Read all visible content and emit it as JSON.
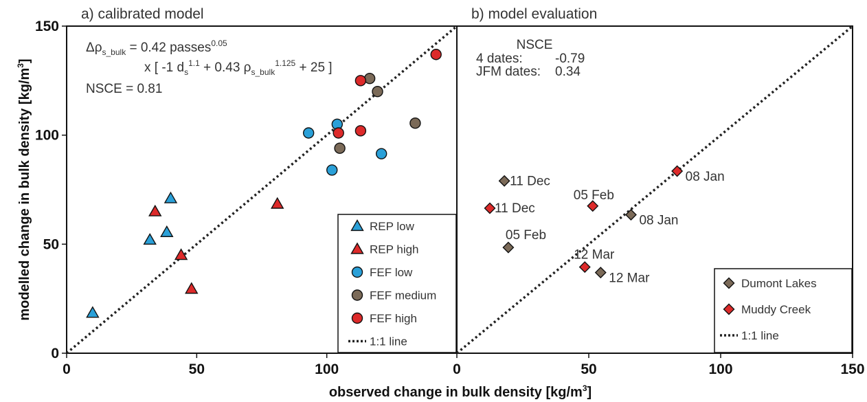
{
  "chart_data": {
    "type": "scatter",
    "xlabel": "observed change in bulk density [kg/m",
    "ylabel": "modelled change in bulk density [kg/m",
    "unit_exponent": "3",
    "xlim": [
      0,
      150
    ],
    "ylim": [
      0,
      150
    ],
    "x_ticks": [
      "0",
      "50",
      "100",
      "150"
    ],
    "y_ticks": [
      "0",
      "50",
      "100",
      "150"
    ],
    "colors": {
      "blue": "#2aa0d8",
      "red": "#dd2a2a",
      "brown": "#7b6a58"
    },
    "panels": [
      {
        "id": "a",
        "title": "a) calibrated model",
        "x_tick_labels": [
          "0",
          "50",
          "100"
        ],
        "equation": {
          "delta_rho": "Δρ",
          "line1_sub": "s_bulk",
          "line1_rest": " = 0.42 passes",
          "line1_sup": "0.05",
          "line2_a": "x [ -1 d",
          "line2_sub_s": "s",
          "line2_sup_11": "1.1",
          "line2_b": " + 0.43 ρ",
          "line2_sub_bulk": "s_bulk",
          "line2_sup_1125": "1.125",
          "line2_c": " + 25 ]"
        },
        "nsce": "NSCE = 0.81",
        "legend": [
          {
            "label": "REP low",
            "marker": "triangle",
            "color": "blue"
          },
          {
            "label": "REP high",
            "marker": "triangle",
            "color": "red"
          },
          {
            "label": "FEF low",
            "marker": "circle",
            "color": "blue"
          },
          {
            "label": "FEF medium",
            "marker": "circle",
            "color": "brown"
          },
          {
            "label": "FEF high",
            "marker": "circle",
            "color": "red"
          },
          {
            "label": "1:1 line",
            "marker": "dotted",
            "color": ""
          }
        ],
        "series": [
          {
            "name": "REP low",
            "marker": "triangle",
            "color": "blue",
            "points": [
              [
                10,
                18.5
              ],
              [
                32,
                52
              ],
              [
                38.5,
                55.5
              ],
              [
                40,
                71
              ]
            ]
          },
          {
            "name": "REP high",
            "marker": "triangle",
            "color": "red",
            "points": [
              [
                34,
                65
              ],
              [
                44,
                45
              ],
              [
                48,
                29.5
              ],
              [
                81,
                68.5
              ]
            ]
          },
          {
            "name": "FEF low",
            "marker": "circle",
            "color": "blue",
            "points": [
              [
                93,
                101
              ],
              [
                102,
                84
              ],
              [
                104,
                105
              ],
              [
                121,
                91.5
              ]
            ]
          },
          {
            "name": "FEF medium",
            "marker": "circle",
            "color": "brown",
            "points": [
              [
                105,
                94
              ],
              [
                116.5,
                126
              ],
              [
                119.5,
                120
              ],
              [
                134,
                105.5
              ]
            ]
          },
          {
            "name": "FEF high",
            "marker": "circle",
            "color": "red",
            "points": [
              [
                104.5,
                101
              ],
              [
                113,
                102
              ],
              [
                113,
                125
              ],
              [
                142,
                137
              ]
            ]
          }
        ]
      },
      {
        "id": "b",
        "title": "b) model evaluation",
        "x_tick_labels": [
          "0",
          "50",
          "100",
          "150"
        ],
        "nsce_header": "NSCE",
        "nsce_rows": [
          {
            "label": "4 dates:",
            "value": "-0.79"
          },
          {
            "label": "JFM dates:",
            "value": "0.34"
          }
        ],
        "legend": [
          {
            "label": "Dumont Lakes",
            "marker": "diamond",
            "color": "brown"
          },
          {
            "label": "Muddy Creek",
            "marker": "diamond",
            "color": "red"
          },
          {
            "label": "1:1 line",
            "marker": "dotted",
            "color": ""
          }
        ],
        "series": [
          {
            "name": "Dumont Lakes",
            "marker": "diamond",
            "color": "brown",
            "points": [
              {
                "x": 18,
                "y": 79,
                "label": "11 Dec"
              },
              {
                "x": 19.5,
                "y": 48.5,
                "label": "05 Feb"
              },
              {
                "x": 66,
                "y": 63.5,
                "label": "08 Jan"
              },
              {
                "x": 54.5,
                "y": 37,
                "label": "12 Mar"
              }
            ]
          },
          {
            "name": "Muddy Creek",
            "marker": "diamond",
            "color": "red",
            "points": [
              {
                "x": 12.5,
                "y": 66.5,
                "label": "11 Dec"
              },
              {
                "x": 51.5,
                "y": 67.5,
                "label": "05 Feb"
              },
              {
                "x": 83.5,
                "y": 83.5,
                "label": "08 Jan"
              },
              {
                "x": 48.5,
                "y": 39.5,
                "label": "12 Mar"
              }
            ]
          }
        ]
      }
    ]
  }
}
